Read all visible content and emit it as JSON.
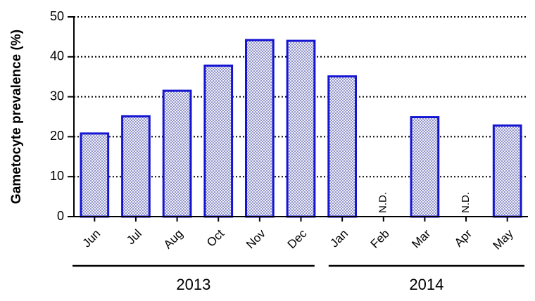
{
  "chart_data": {
    "type": "bar",
    "ylabel": "Gametocyte prevalence (%)",
    "categories": [
      "Jun",
      "Jul",
      "Aug",
      "Oct",
      "Nov",
      "Dec",
      "Jan",
      "Feb",
      "Mar",
      "Apr",
      "May"
    ],
    "values": [
      20.8,
      25.1,
      31.5,
      37.8,
      44.2,
      44.0,
      35.1,
      null,
      24.9,
      null,
      22.8
    ],
    "value_labels": [
      null,
      null,
      null,
      null,
      null,
      null,
      null,
      "N.D.",
      null,
      "N.D.",
      null
    ],
    "groups": [
      {
        "label": "2013",
        "span": 6
      },
      {
        "label": "2014",
        "span": 5
      }
    ],
    "color": "#1414d2",
    "ylim": [
      0,
      50
    ],
    "yticks": [
      0,
      10,
      20,
      30,
      40,
      50
    ],
    "grid": true
  }
}
